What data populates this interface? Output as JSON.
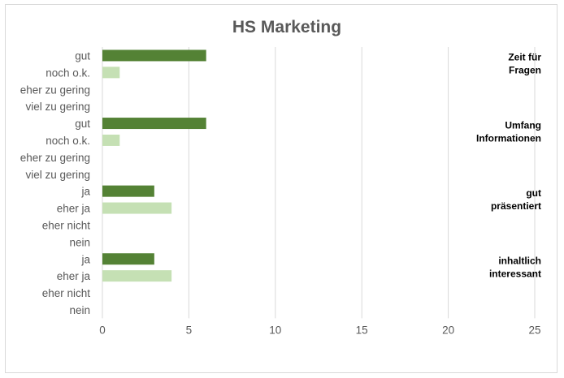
{
  "chart_data": {
    "type": "bar",
    "orientation": "horizontal",
    "title": "HS Marketing",
    "xlim": [
      0,
      25
    ],
    "xticks": [
      0,
      5,
      10,
      15,
      20,
      25
    ],
    "grid": true,
    "colors": {
      "dark": "#548235",
      "light": "#c5e0b4",
      "grid": "#d9d9d9",
      "text": "#595959"
    },
    "groups": [
      {
        "name": "Zeit für Fragen",
        "name_lines": [
          "Zeit für",
          "Fragen"
        ],
        "categories": [
          "gut",
          "noch o.k.",
          "eher zu gering",
          "viel zu gering"
        ],
        "values": [
          6,
          1,
          0,
          0
        ]
      },
      {
        "name": "Umfang Informationen",
        "name_lines": [
          "Umfang",
          "Informationen"
        ],
        "categories": [
          "gut",
          "noch o.k.",
          "eher zu gering",
          "viel zu gering"
        ],
        "values": [
          6,
          1,
          0,
          0
        ]
      },
      {
        "name": "gut präsentiert",
        "name_lines": [
          "gut",
          "präsentiert"
        ],
        "categories": [
          "ja",
          "eher ja",
          "eher nicht",
          "nein"
        ],
        "values": [
          3,
          4,
          0,
          0
        ]
      },
      {
        "name": "inhaltlich interessant",
        "name_lines": [
          "inhaltlich",
          "interessant"
        ],
        "categories": [
          "ja",
          "eher ja",
          "eher nicht",
          "nein"
        ],
        "values": [
          3,
          4,
          0,
          0
        ]
      }
    ]
  }
}
